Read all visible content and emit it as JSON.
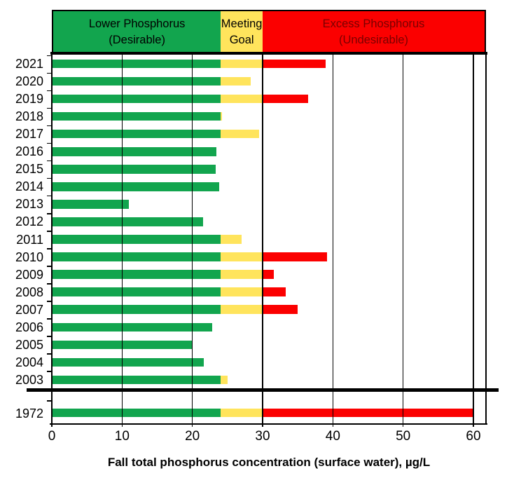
{
  "legend_band": {
    "zones": [
      {
        "name": "lower-phosphorus",
        "line1": "Lower Phosphorus",
        "line2": "(Desirable)",
        "color": "#12A54E",
        "text_color": "#000000",
        "range": [
          0,
          24
        ]
      },
      {
        "name": "meeting-goal",
        "line1": "Meeting",
        "line2": "Goal",
        "color": "#FFE45C",
        "text_color": "#000000",
        "range": [
          24,
          30
        ]
      },
      {
        "name": "excess-phosphorus",
        "line1": "Excess Phosphorus",
        "line2": "(Undesirable)",
        "color": "#FB0000",
        "text_color": "#7A0000",
        "range": [
          30,
          61.8
        ]
      }
    ]
  },
  "chart_data": {
    "type": "bar",
    "orientation": "horizontal",
    "title": "",
    "xlabel": "Fall total phosphorus concentration (surface water), µg/L",
    "ylabel": "",
    "xlim": [
      0,
      61.8
    ],
    "xticks": [
      0,
      10,
      20,
      30,
      40,
      50,
      60
    ],
    "grid": "vertical black gridlines every 10 units, drawn over bars",
    "legend_position": "top band",
    "zone_thresholds": {
      "goal_lower": 24,
      "goal_upper": 30
    },
    "segment_colors": {
      "below_goal": "#12A54E",
      "within_goal": "#FFE45C",
      "above_goal": "#FB0000"
    },
    "categories": [
      "2021",
      "2020",
      "2019",
      "2018",
      "2017",
      "2016",
      "2015",
      "2014",
      "2013",
      "2012",
      "2011",
      "2010",
      "2009",
      "2008",
      "2007",
      "2006",
      "2005",
      "2004",
      "2003"
    ],
    "values": [
      39,
      28.3,
      36.5,
      24.2,
      29.5,
      23.4,
      23.3,
      23.8,
      11,
      21.5,
      27,
      39.2,
      31.6,
      33.3,
      35,
      22.8,
      20,
      21.6,
      25
    ],
    "separated_group": {
      "categories": [
        "1972"
      ],
      "values": [
        60
      ]
    }
  }
}
